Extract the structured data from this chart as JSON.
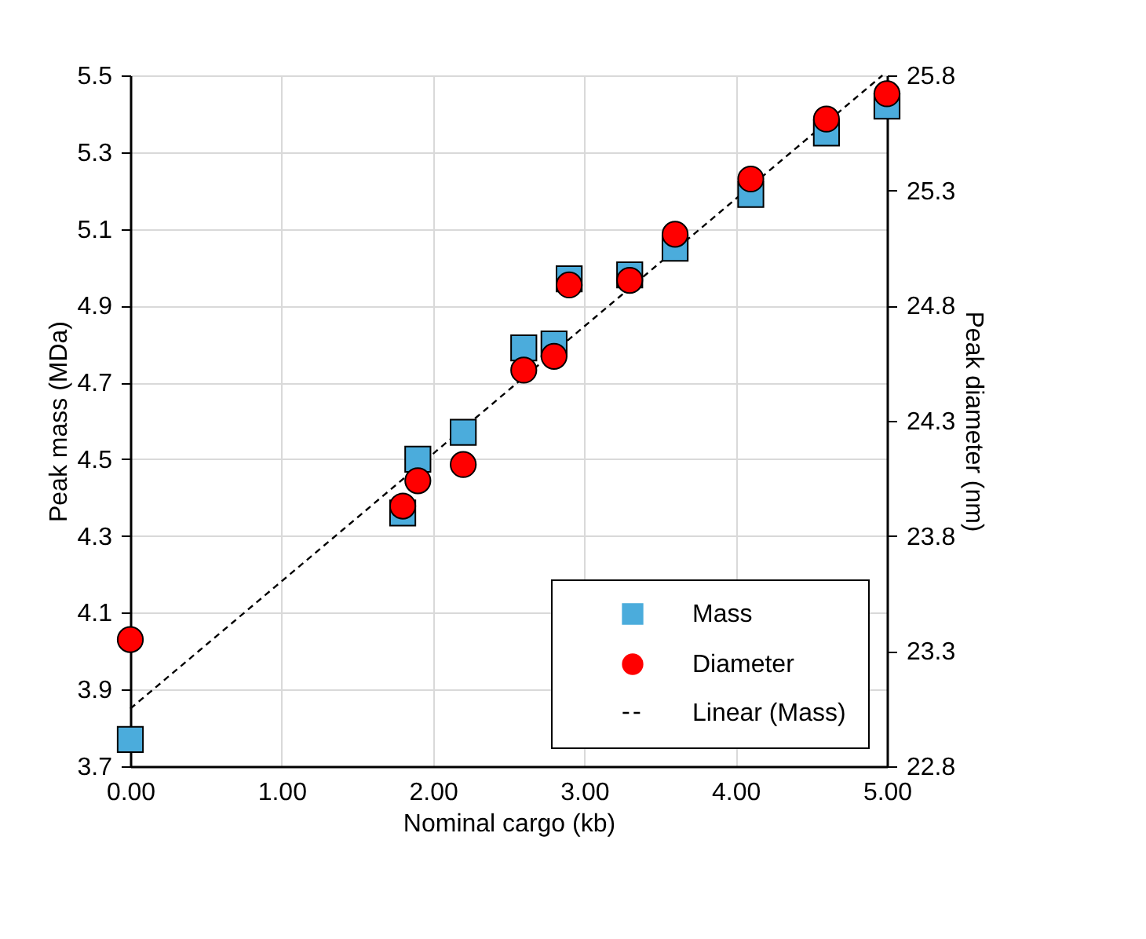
{
  "chart_data": {
    "type": "scatter",
    "xlabel": "Nominal cargo (kb)",
    "ylabel": "Peak mass (MDa)",
    "y2label": "Peak diameter (nm)",
    "x": [
      0,
      1.8,
      1.9,
      2.2,
      2.6,
      2.8,
      2.9,
      3.3,
      3.6,
      4.1,
      4.6,
      5.0
    ],
    "series": [
      {
        "name": "Mass",
        "type": "scatter",
        "marker": "square",
        "color": "#4bacdc",
        "values": [
          3.77,
          4.36,
          4.5,
          4.57,
          4.79,
          4.8,
          4.97,
          4.98,
          5.05,
          5.19,
          5.35,
          5.42
        ]
      },
      {
        "name": "Diameter",
        "type": "scatter",
        "marker": "circle",
        "axis": "y2",
        "color": "#ff0000",
        "values": [
          23.35,
          23.93,
          24.04,
          24.11,
          24.52,
          24.58,
          24.89,
          24.91,
          25.11,
          25.35,
          25.61,
          25.72
        ]
      },
      {
        "name": "Linear (Mass)",
        "type": "line",
        "marker": "none",
        "line_style": "dashed",
        "color": "#000000",
        "x": [
          0,
          4.97
        ],
        "values": [
          3.85,
          5.5
        ]
      }
    ],
    "xlim": [
      0,
      5
    ],
    "xticks": [
      {
        "value": 0,
        "label": "0.00"
      },
      {
        "value": 1,
        "label": "1.00"
      },
      {
        "value": 2,
        "label": "2.00"
      },
      {
        "value": 3,
        "label": "3.00"
      },
      {
        "value": 4,
        "label": "4.00"
      },
      {
        "value": 5,
        "label": "5.00"
      }
    ],
    "ylim": [
      3.7,
      5.5
    ],
    "yticks": [
      3.7,
      3.9,
      4.1,
      4.3,
      4.5,
      4.7,
      4.9,
      5.1,
      5.3,
      5.5
    ],
    "y2lim": [
      22.8,
      25.8
    ],
    "y2ticks": [
      22.8,
      23.3,
      23.8,
      24.3,
      24.8,
      25.3,
      25.8
    ],
    "grid": true,
    "legend": "bottom right"
  }
}
